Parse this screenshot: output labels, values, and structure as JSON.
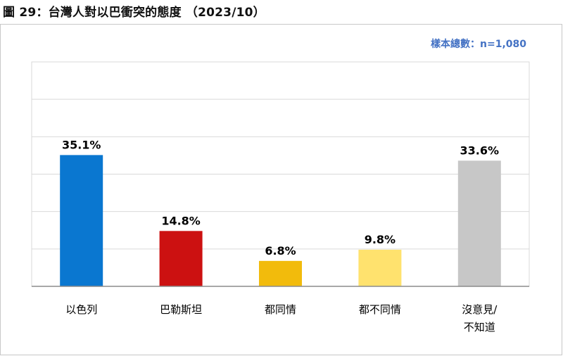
{
  "figure": {
    "title": "圖 29：台灣人對以巴衝突的態度 （2023/10）",
    "sample_note": "樣本總數：n=1,080"
  },
  "chart_data": {
    "type": "bar",
    "categories": [
      [
        "以色列"
      ],
      [
        "巴勒斯坦"
      ],
      [
        "都同情"
      ],
      [
        "都不同情"
      ],
      [
        "沒意見/",
        "不知道"
      ]
    ],
    "values": [
      35.1,
      14.8,
      6.8,
      9.8,
      33.6
    ],
    "data_labels": [
      "35.1%",
      "14.8%",
      "6.8%",
      "9.8%",
      "33.6%"
    ],
    "colors": [
      "#0a77d0",
      "#cc1111",
      "#f2bb0c",
      "#ffe26e",
      "#c7c7c7"
    ],
    "ylim": [
      0,
      60
    ],
    "gridlines": [
      10,
      20,
      30,
      40,
      50
    ],
    "grid": true,
    "legend": false
  }
}
